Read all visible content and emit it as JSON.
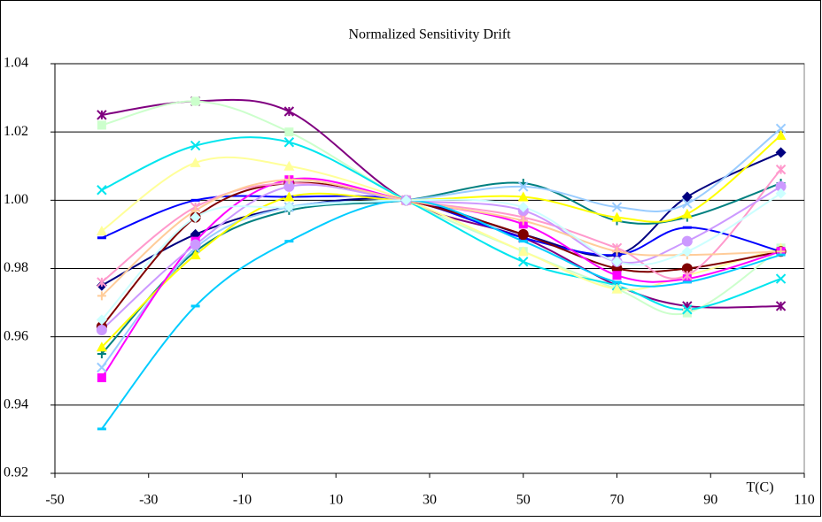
{
  "chart_data": {
    "type": "line",
    "title": "Normalized Sensitivity Drift",
    "x_label": "T(C)",
    "smooth": true,
    "grid": true,
    "x": [
      -40,
      -20,
      0,
      25,
      50,
      70,
      85,
      105
    ],
    "xlim": [
      -50,
      110
    ],
    "xticks": [
      -50,
      -30,
      -10,
      10,
      30,
      50,
      70,
      90,
      110
    ],
    "ylim": [
      0.92,
      1.04
    ],
    "yticks": [
      0.92,
      0.94,
      0.96,
      0.98,
      {
        "value": 1,
        "label": "1.00"
      },
      1.02,
      1.04
    ],
    "series": [
      {
        "color": "#800080",
        "marker": "star",
        "values": [
          1.025,
          1.029,
          1.026,
          1,
          0.989,
          0.975,
          0.969,
          0.969
        ]
      },
      {
        "color": "#ccffcc",
        "marker": "square",
        "values": [
          1.022,
          1.029,
          1.02,
          1,
          0.985,
          0.974,
          0.967,
          0.986
        ]
      },
      {
        "color": "#00e5ee",
        "marker": "x",
        "values": [
          1.003,
          1.016,
          1.017,
          1,
          0.982,
          0.975,
          0.968,
          0.977
        ]
      },
      {
        "color": "#ffff99",
        "marker": "triangle",
        "values": [
          0.991,
          1.011,
          1.01,
          1,
          0.985,
          0.974,
          0.978,
          0.986
        ]
      },
      {
        "color": "#000080",
        "marker": "diamond",
        "values": [
          0.975,
          0.99,
          0.998,
          1,
          0.99,
          0.984,
          1.001,
          1.014
        ]
      },
      {
        "color": "#0000ff",
        "marker": "dash",
        "values": [
          0.989,
          1.0,
          1.001,
          1,
          0.989,
          0.984,
          0.992,
          0.985
        ]
      },
      {
        "color": "#008080",
        "marker": "plus",
        "values": [
          0.955,
          0.985,
          0.997,
          1,
          1.005,
          0.994,
          0.995,
          1.005
        ]
      },
      {
        "color": "#99ccff",
        "marker": "x",
        "values": [
          0.951,
          0.986,
          0.998,
          1,
          1.004,
          0.998,
          0.999,
          1.021
        ]
      },
      {
        "color": "#ffff00",
        "marker": "triangle",
        "values": [
          0.957,
          0.984,
          1.001,
          1,
          1.001,
          0.995,
          0.996,
          1.019
        ]
      },
      {
        "color": "#800000",
        "marker": "circle",
        "values": [
          0.963,
          0.995,
          1.005,
          1,
          0.99,
          0.98,
          0.98,
          0.985
        ]
      },
      {
        "color": "#ff00ff",
        "marker": "square",
        "values": [
          0.948,
          0.988,
          1.006,
          1,
          0.993,
          0.978,
          0.977,
          0.985
        ]
      },
      {
        "color": "#ff99cc",
        "marker": "star",
        "values": [
          0.976,
          0.998,
          1.005,
          1,
          0.995,
          0.986,
          0.978,
          1.009
        ]
      },
      {
        "color": "#cc99ff",
        "marker": "circle",
        "values": [
          0.962,
          0.987,
          1.004,
          1,
          0.997,
          0.982,
          0.988,
          1.004
        ]
      },
      {
        "color": "#ffcc99",
        "marker": "plus",
        "values": [
          0.972,
          0.997,
          1.006,
          1,
          0.994,
          0.985,
          0.984,
          0.985
        ]
      },
      {
        "color": "#00ccff",
        "marker": "dash",
        "values": [
          0.933,
          0.969,
          0.988,
          1,
          0.988,
          0.976,
          0.976,
          0.984
        ]
      },
      {
        "color": "#ccffff",
        "marker": "diamond",
        "values": [
          0.965,
          0.995,
          0.998,
          1,
          0.998,
          0.982,
          0.985,
          1.002
        ]
      }
    ]
  }
}
